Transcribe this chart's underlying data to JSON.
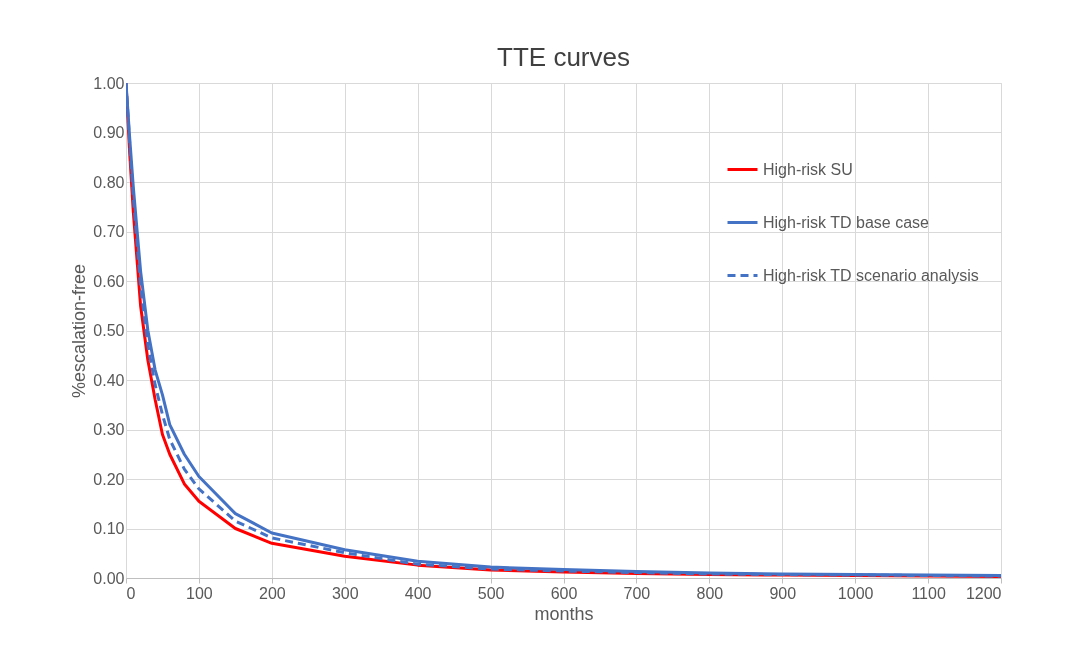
{
  "chart_data": {
    "type": "line",
    "title": "TTE curves",
    "xlabel": "months",
    "ylabel": "%escalation-free",
    "x": [
      0,
      5,
      10,
      20,
      30,
      40,
      50,
      60,
      80,
      100,
      150,
      200,
      300,
      400,
      500,
      600,
      700,
      800,
      900,
      1000,
      1100,
      1200
    ],
    "series": [
      {
        "name": "High-risk SU",
        "color": "#ff0000",
        "line_style": "solid",
        "values": [
          1.0,
          0.86,
          0.74,
          0.55,
          0.44,
          0.36,
          0.29,
          0.25,
          0.19,
          0.155,
          0.1,
          0.07,
          0.044,
          0.026,
          0.016,
          0.012,
          0.009,
          0.007,
          0.006,
          0.005,
          0.004,
          0.003
        ]
      },
      {
        "name": "High-risk TD base case",
        "color": "#4472c4",
        "line_style": "solid",
        "values": [
          1.0,
          0.89,
          0.79,
          0.62,
          0.5,
          0.42,
          0.37,
          0.31,
          0.25,
          0.205,
          0.13,
          0.091,
          0.057,
          0.034,
          0.022,
          0.017,
          0.013,
          0.01,
          0.008,
          0.007,
          0.006,
          0.005
        ]
      },
      {
        "name": "High-risk TD scenario analysis",
        "color": "#4472c4",
        "line_style": "dashed",
        "values": [
          1.0,
          0.88,
          0.77,
          0.59,
          0.47,
          0.39,
          0.33,
          0.28,
          0.22,
          0.18,
          0.115,
          0.081,
          0.051,
          0.028,
          0.018,
          0.014,
          0.011,
          0.008,
          0.007,
          0.006,
          0.005,
          0.004
        ]
      }
    ],
    "xlim": [
      0,
      1200
    ],
    "xticks": [
      0,
      100,
      200,
      300,
      400,
      500,
      600,
      700,
      800,
      900,
      1000,
      1100,
      1200
    ],
    "ylim": [
      0,
      1
    ],
    "yticks": [
      {
        "value": 0,
        "label": "0.00"
      },
      {
        "value": 0.1,
        "label": "0.10"
      },
      {
        "value": 0.2,
        "label": "0.20"
      },
      {
        "value": 0.3,
        "label": "0.30"
      },
      {
        "value": 0.4,
        "label": "0.40"
      },
      {
        "value": 0.5,
        "label": "0.50"
      },
      {
        "value": 0.6,
        "label": "0.60"
      },
      {
        "value": 0.7,
        "label": "0.70"
      },
      {
        "value": 0.8,
        "label": "0.80"
      },
      {
        "value": 0.9,
        "label": "0.90"
      },
      {
        "value": 1,
        "label": "1.00"
      }
    ],
    "grid": true,
    "legend": "top right",
    "marker": "none"
  }
}
